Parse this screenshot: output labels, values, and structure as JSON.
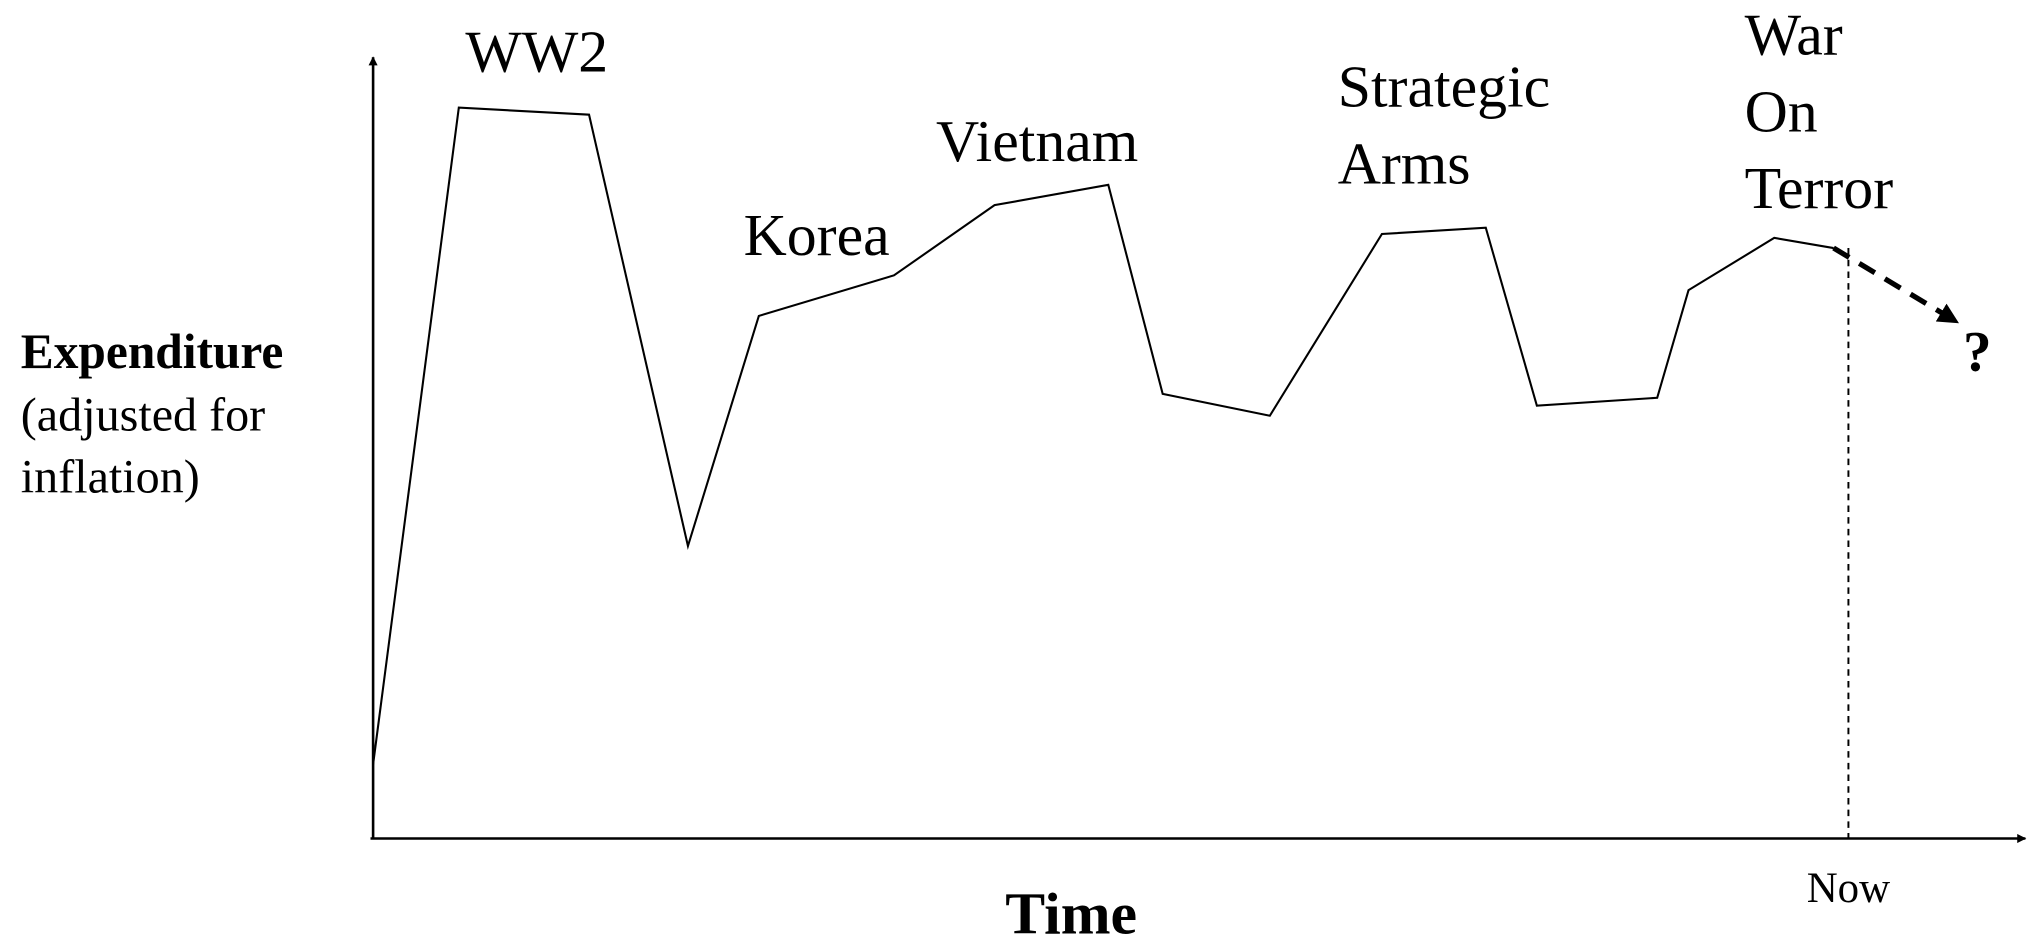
{
  "chart_data": {
    "type": "line",
    "x": [
      0,
      5.2,
      13.1,
      19.1,
      23.4,
      31.6,
      37.7,
      44.6,
      47.9,
      54.4,
      61.2,
      67.5,
      70.6,
      77.9,
      79.8,
      85,
      88.6
    ],
    "values": [
      9.5,
      93.7,
      92.8,
      37.5,
      67,
      72.2,
      81.2,
      83.8,
      57,
      54.2,
      77.5,
      78.3,
      55.5,
      56.5,
      70.3,
      77,
      75.7
    ],
    "projection": {
      "x": [
        88.6,
        96.1
      ],
      "values": [
        75.7,
        66.2
      ]
    },
    "xlim": [
      0,
      100
    ],
    "ylim": [
      0,
      100
    ],
    "color": "#000000",
    "x_label": "Time",
    "y_label": [
      "Expenditure",
      "(adjusted for",
      "inflation)"
    ],
    "now": {
      "x": 89.5,
      "label": "Now"
    },
    "annotations": [
      [
        "WW2"
      ],
      [
        "Korea"
      ],
      [
        "Vietnam"
      ],
      [
        "Strategic",
        "Arms"
      ],
      [
        "War",
        "On",
        "Terror"
      ],
      [
        "?"
      ]
    ]
  }
}
